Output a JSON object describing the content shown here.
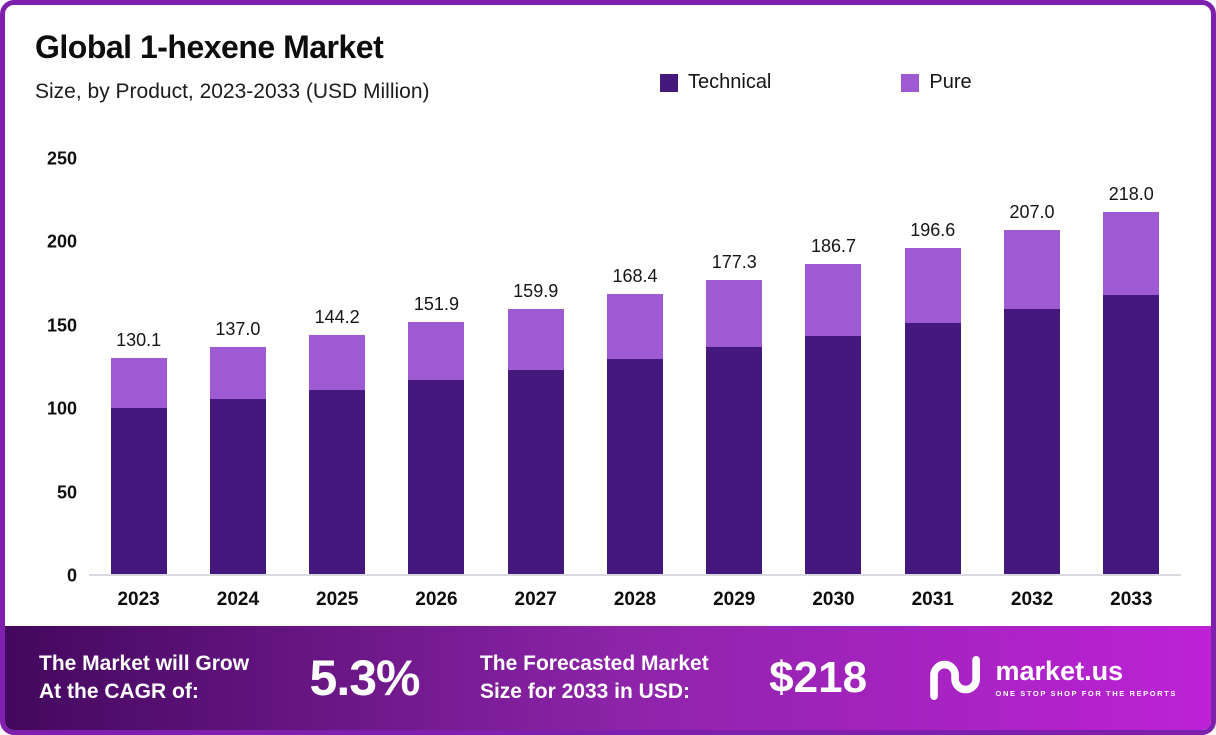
{
  "header": {
    "title": "Global 1-hexene Market",
    "subtitle": "Size, by Product, 2023-2033 (USD Million)"
  },
  "legend": [
    {
      "label": "Technical",
      "color": "#45187e"
    },
    {
      "label": "Pure",
      "color": "#9d5ad3"
    }
  ],
  "chart_data": {
    "type": "bar",
    "stacked": true,
    "title": "Global 1-hexene Market",
    "subtitle": "Size, by Product, 2023-2033 (USD Million)",
    "categories": [
      "2023",
      "2024",
      "2025",
      "2026",
      "2027",
      "2028",
      "2029",
      "2030",
      "2031",
      "2032",
      "2033"
    ],
    "series": [
      {
        "name": "Technical",
        "color": "#45187e",
        "values": [
          100.0,
          105.5,
          111.0,
          117.0,
          123.0,
          129.5,
          136.5,
          143.5,
          151.0,
          159.5,
          168.0
        ]
      },
      {
        "name": "Pure",
        "color": "#9d5ad3",
        "values": [
          30.1,
          31.5,
          33.2,
          34.9,
          36.9,
          38.9,
          40.8,
          43.2,
          45.6,
          47.5,
          50.0
        ]
      }
    ],
    "totals": [
      130.1,
      137.0,
      144.2,
      151.9,
      159.9,
      168.4,
      177.3,
      186.7,
      196.6,
      207.0,
      218.0
    ],
    "total_labels": [
      "130.1",
      "137.0",
      "144.2",
      "151.9",
      "159.9",
      "168.4",
      "177.3",
      "186.7",
      "196.6",
      "207.0",
      "218.0"
    ],
    "ylim": [
      0,
      250
    ],
    "yticks": [
      0,
      50,
      100,
      150,
      200,
      250
    ],
    "grid": false,
    "legend_position": "top"
  },
  "footer": {
    "cagr_label_line1": "The Market will Grow",
    "cagr_label_line2": "At the CAGR of:",
    "cagr_value": "5.3%",
    "forecast_label_line1": "The Forecasted Market",
    "forecast_label_line2": "Size for 2033 in USD:",
    "forecast_value": "$218",
    "brand": "market.us",
    "brand_tagline": "ONE STOP SHOP FOR THE REPORTS",
    "gradient_left": "#43085e",
    "gradient_mid": "#8e24aa",
    "gradient_right": "#bd22d6",
    "border_color": "#7e1fae"
  }
}
